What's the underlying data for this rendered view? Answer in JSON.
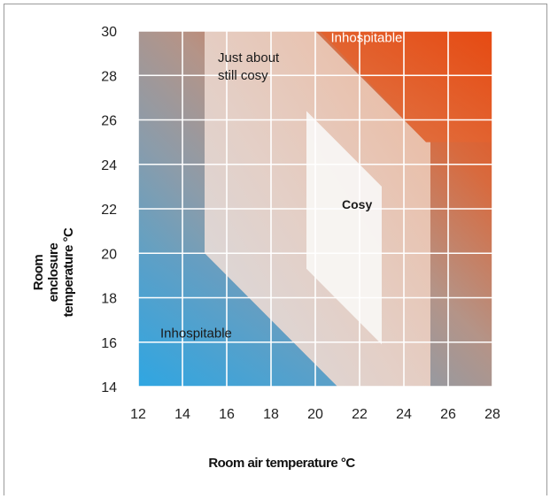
{
  "chart_data": {
    "type": "area",
    "title": "",
    "xlabel": "Room air temperature °C",
    "ylabel_lines": [
      "Room",
      "enclosure",
      "temperature °C"
    ],
    "xlim": [
      12,
      28
    ],
    "ylim": [
      14,
      30
    ],
    "x_ticks": [
      12,
      14,
      16,
      18,
      20,
      22,
      24,
      26,
      28
    ],
    "y_ticks": [
      14,
      16,
      18,
      20,
      22,
      24,
      26,
      28,
      30
    ],
    "grid": true,
    "colors": {
      "cold": "#2fa6e2",
      "hot": "#e64a12",
      "comfort_zone": "#e8c7b7",
      "cosy_zone": "#f8f5f3",
      "grid": "#ffffff"
    },
    "regions": [
      {
        "label": "Just about still cosy",
        "label_lines": [
          "Just about",
          "still cosy"
        ],
        "label_at": [
          15.6,
          28.6
        ],
        "polygon": [
          [
            15,
            30
          ],
          [
            20,
            30
          ],
          [
            25,
            25
          ],
          [
            25.2,
            25
          ],
          [
            25.2,
            14
          ],
          [
            21,
            14
          ],
          [
            15,
            20
          ],
          [
            15,
            30
          ]
        ]
      },
      {
        "label": "Cosy",
        "label_at": [
          21.2,
          22.0
        ],
        "polygon": [
          [
            19.6,
            26.4
          ],
          [
            23.0,
            23.0
          ],
          [
            23.0,
            15.9
          ],
          [
            19.6,
            19.3
          ]
        ]
      },
      {
        "label": "Inhospitable",
        "label_at": [
          20.7,
          29.5
        ],
        "polygon": [
          [
            20.2,
            30
          ],
          [
            28,
            30
          ],
          [
            28,
            25
          ],
          [
            25,
            25
          ]
        ]
      },
      {
        "label": "Inhospitable",
        "label_at": [
          13.0,
          16.2
        ],
        "polygon": [
          [
            12,
            20
          ],
          [
            15,
            20
          ],
          [
            21,
            14
          ],
          [
            12,
            14
          ]
        ]
      }
    ]
  }
}
